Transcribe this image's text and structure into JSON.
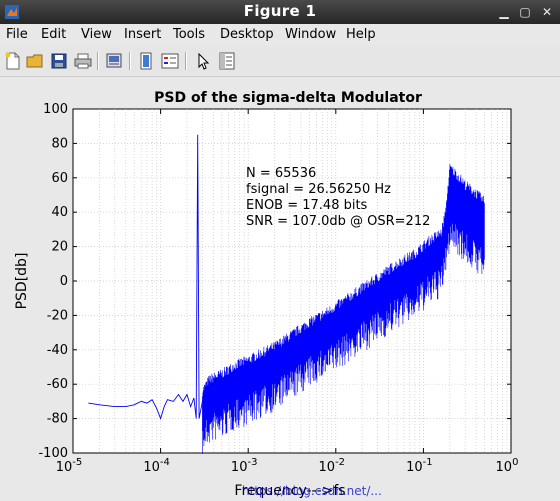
{
  "window": {
    "title": "Figure 1"
  },
  "menu": {
    "items": [
      "File",
      "Edit",
      "View",
      "Insert",
      "Tools",
      "Desktop",
      "Window",
      "Help"
    ]
  },
  "toolbar": {
    "icons": [
      "new-file-icon",
      "open-folder-icon",
      "save-icon",
      "print-icon",
      "print-preview-icon",
      "link-plot-icon",
      "insert-legend-icon",
      "pointer-icon",
      "property-editor-icon"
    ]
  },
  "colors": {
    "line": "#0000ff",
    "background": "#e8e8e8"
  },
  "chart_data": {
    "type": "line",
    "title": "PSD of the sigma-delta Modulator",
    "xlabel": "Frequency--->fs",
    "ylabel": "PSD[db]",
    "xscale": "log",
    "xlim": [
      1e-05,
      1
    ],
    "ylim": [
      -100,
      100
    ],
    "grid": true,
    "yticks": [
      "-100",
      "-80",
      "-60",
      "-40",
      "-20",
      "0",
      "20",
      "40",
      "60",
      "80",
      "100"
    ],
    "xticks_exp": [
      "-5",
      "-4",
      "-3",
      "-2",
      "-1",
      "0"
    ],
    "xticks_base": "10",
    "annotation": [
      "N = 65536",
      "fsignal = 26.56250 Hz",
      "ENOB = 17.48 bits",
      "SNR = 107.0db @ OSR=212"
    ],
    "watermark": "https://blog.csdn.net/...",
    "series": [
      {
        "x": [
          1.5e-05,
          2e-05,
          3e-05,
          4e-05,
          5e-05,
          6e-05,
          7e-05,
          8e-05,
          9e-05,
          0.0001,
          0.00011,
          0.00012,
          0.00014,
          0.00016,
          0.00018,
          0.0002,
          0.00022,
          0.00024,
          0.000255,
          0.000265,
          0.000275,
          0.0003,
          0.00035,
          0.0004,
          0.0005,
          0.0007,
          0.001,
          0.0014,
          0.002,
          0.003,
          0.005,
          0.008,
          0.012,
          0.02,
          0.03,
          0.05,
          0.08,
          0.12,
          0.16,
          0.18,
          0.2,
          0.25,
          0.3,
          0.4,
          0.5
        ],
        "y": [
          -71,
          -72,
          -73,
          -73,
          -72,
          -70,
          -71,
          -69,
          -74,
          -80,
          -73,
          -69,
          -70,
          -66,
          -70,
          -66,
          -73,
          -68,
          -80,
          85,
          -80,
          -70,
          -64,
          -62,
          -60,
          -55,
          -52,
          -48,
          -44,
          -38,
          -30,
          -24,
          -18,
          -10,
          -4,
          4,
          10,
          18,
          22,
          35,
          60,
          55,
          50,
          45,
          40
        ]
      }
    ]
  }
}
